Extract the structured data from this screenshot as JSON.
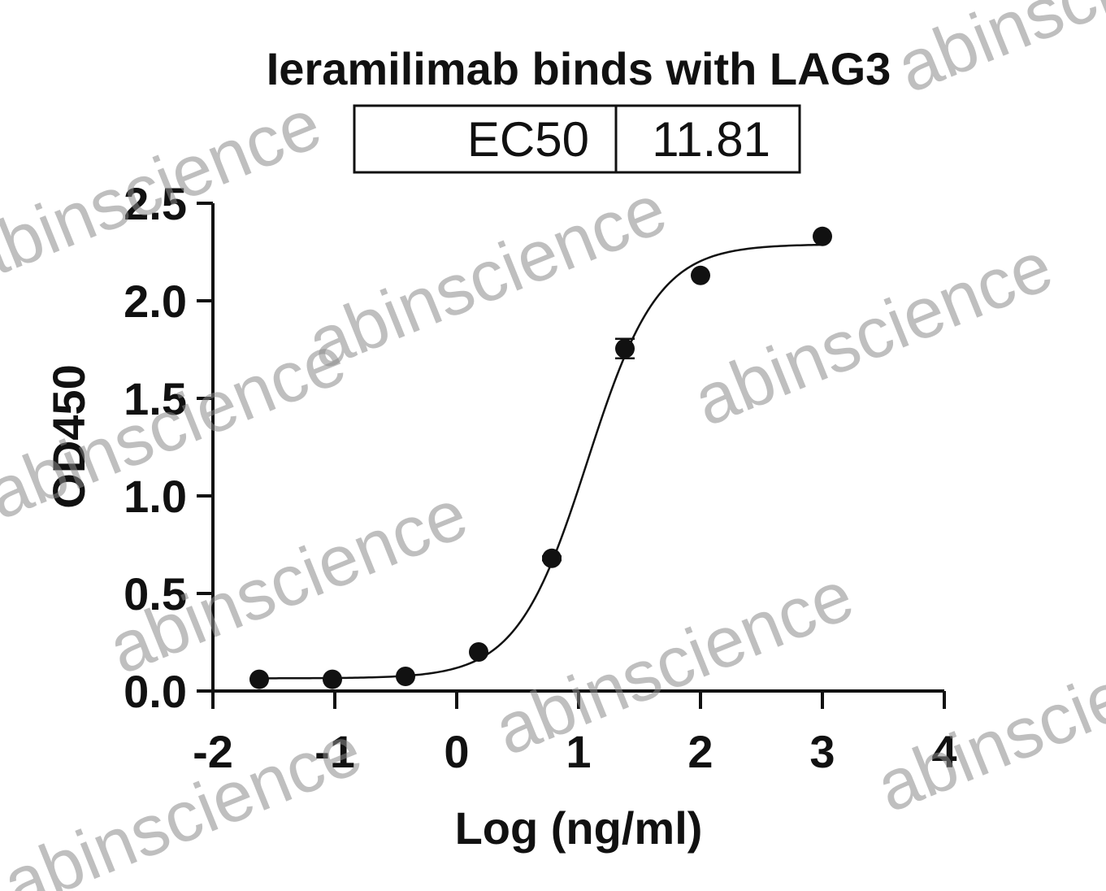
{
  "chart_data": {
    "type": "scatter",
    "title": "Ieramilimab binds with LAG3",
    "xlabel": "Log (ng/ml)",
    "ylabel": "OD450",
    "xlim": [
      -2,
      4
    ],
    "ylim": [
      0,
      2.5
    ],
    "x_ticks": [
      -2,
      -1,
      0,
      1,
      2,
      3,
      4
    ],
    "y_ticks": [
      0.0,
      0.5,
      1.0,
      1.5,
      2.0,
      2.5
    ],
    "x_tick_labels": [
      "-2",
      "-1",
      "0",
      "1",
      "2",
      "3",
      "4"
    ],
    "y_tick_labels": [
      "0.0",
      "0.5",
      "1.0",
      "1.5",
      "2.0",
      "2.5"
    ],
    "ec50_table": {
      "label": "EC50",
      "value": "11.81"
    },
    "points": [
      {
        "x": -1.62,
        "y": 0.06
      },
      {
        "x": -1.02,
        "y": 0.06
      },
      {
        "x": -0.42,
        "y": 0.075
      },
      {
        "x": 0.18,
        "y": 0.2
      },
      {
        "x": 0.78,
        "y": 0.68,
        "err": 0.01
      },
      {
        "x": 1.38,
        "y": 1.755,
        "err": 0.05
      },
      {
        "x": 2.0,
        "y": 2.13
      },
      {
        "x": 3.0,
        "y": 2.33
      }
    ],
    "fit": {
      "bottom": 0.065,
      "top": 2.29,
      "logEC50": 1.0723,
      "hill": 1.5
    },
    "grid": false,
    "legend": "none",
    "colors": {
      "points": "#111111",
      "curve": "#111111",
      "axes": "#111111"
    }
  },
  "watermark": {
    "text": "abinscience"
  }
}
